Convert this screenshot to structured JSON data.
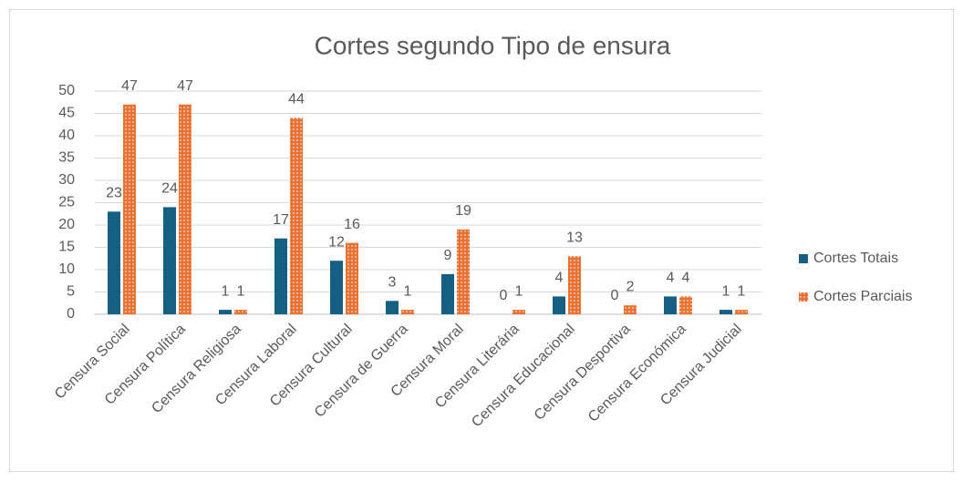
{
  "chart_data": {
    "type": "bar",
    "title": "Cortes segundo Tipo de ensura",
    "categories": [
      "Censura Social",
      "Censura Política",
      "Censura Religiosa",
      "Censura Laboral",
      "Censura Cultural",
      "Censura de Guerra",
      "Censura Moral",
      "Censura Literária",
      "Censura Educacional",
      "Censura Desportiva",
      "Censura Económica",
      "Censura Judicial"
    ],
    "series": [
      {
        "name": "Cortes Totais",
        "color": "#156082",
        "values": [
          23,
          24,
          1,
          17,
          12,
          3,
          9,
          0,
          4,
          0,
          4,
          1
        ]
      },
      {
        "name": "Cortes Parciais",
        "color": "#e97132",
        "pattern": "dotted",
        "values": [
          47,
          47,
          1,
          44,
          16,
          1,
          19,
          1,
          13,
          2,
          4,
          1
        ]
      }
    ],
    "ylim": [
      0,
      50
    ],
    "yticks": [
      0,
      5,
      10,
      15,
      20,
      25,
      30,
      35,
      40,
      45,
      50
    ],
    "grid": true,
    "legend": "right",
    "data_labels": true
  }
}
